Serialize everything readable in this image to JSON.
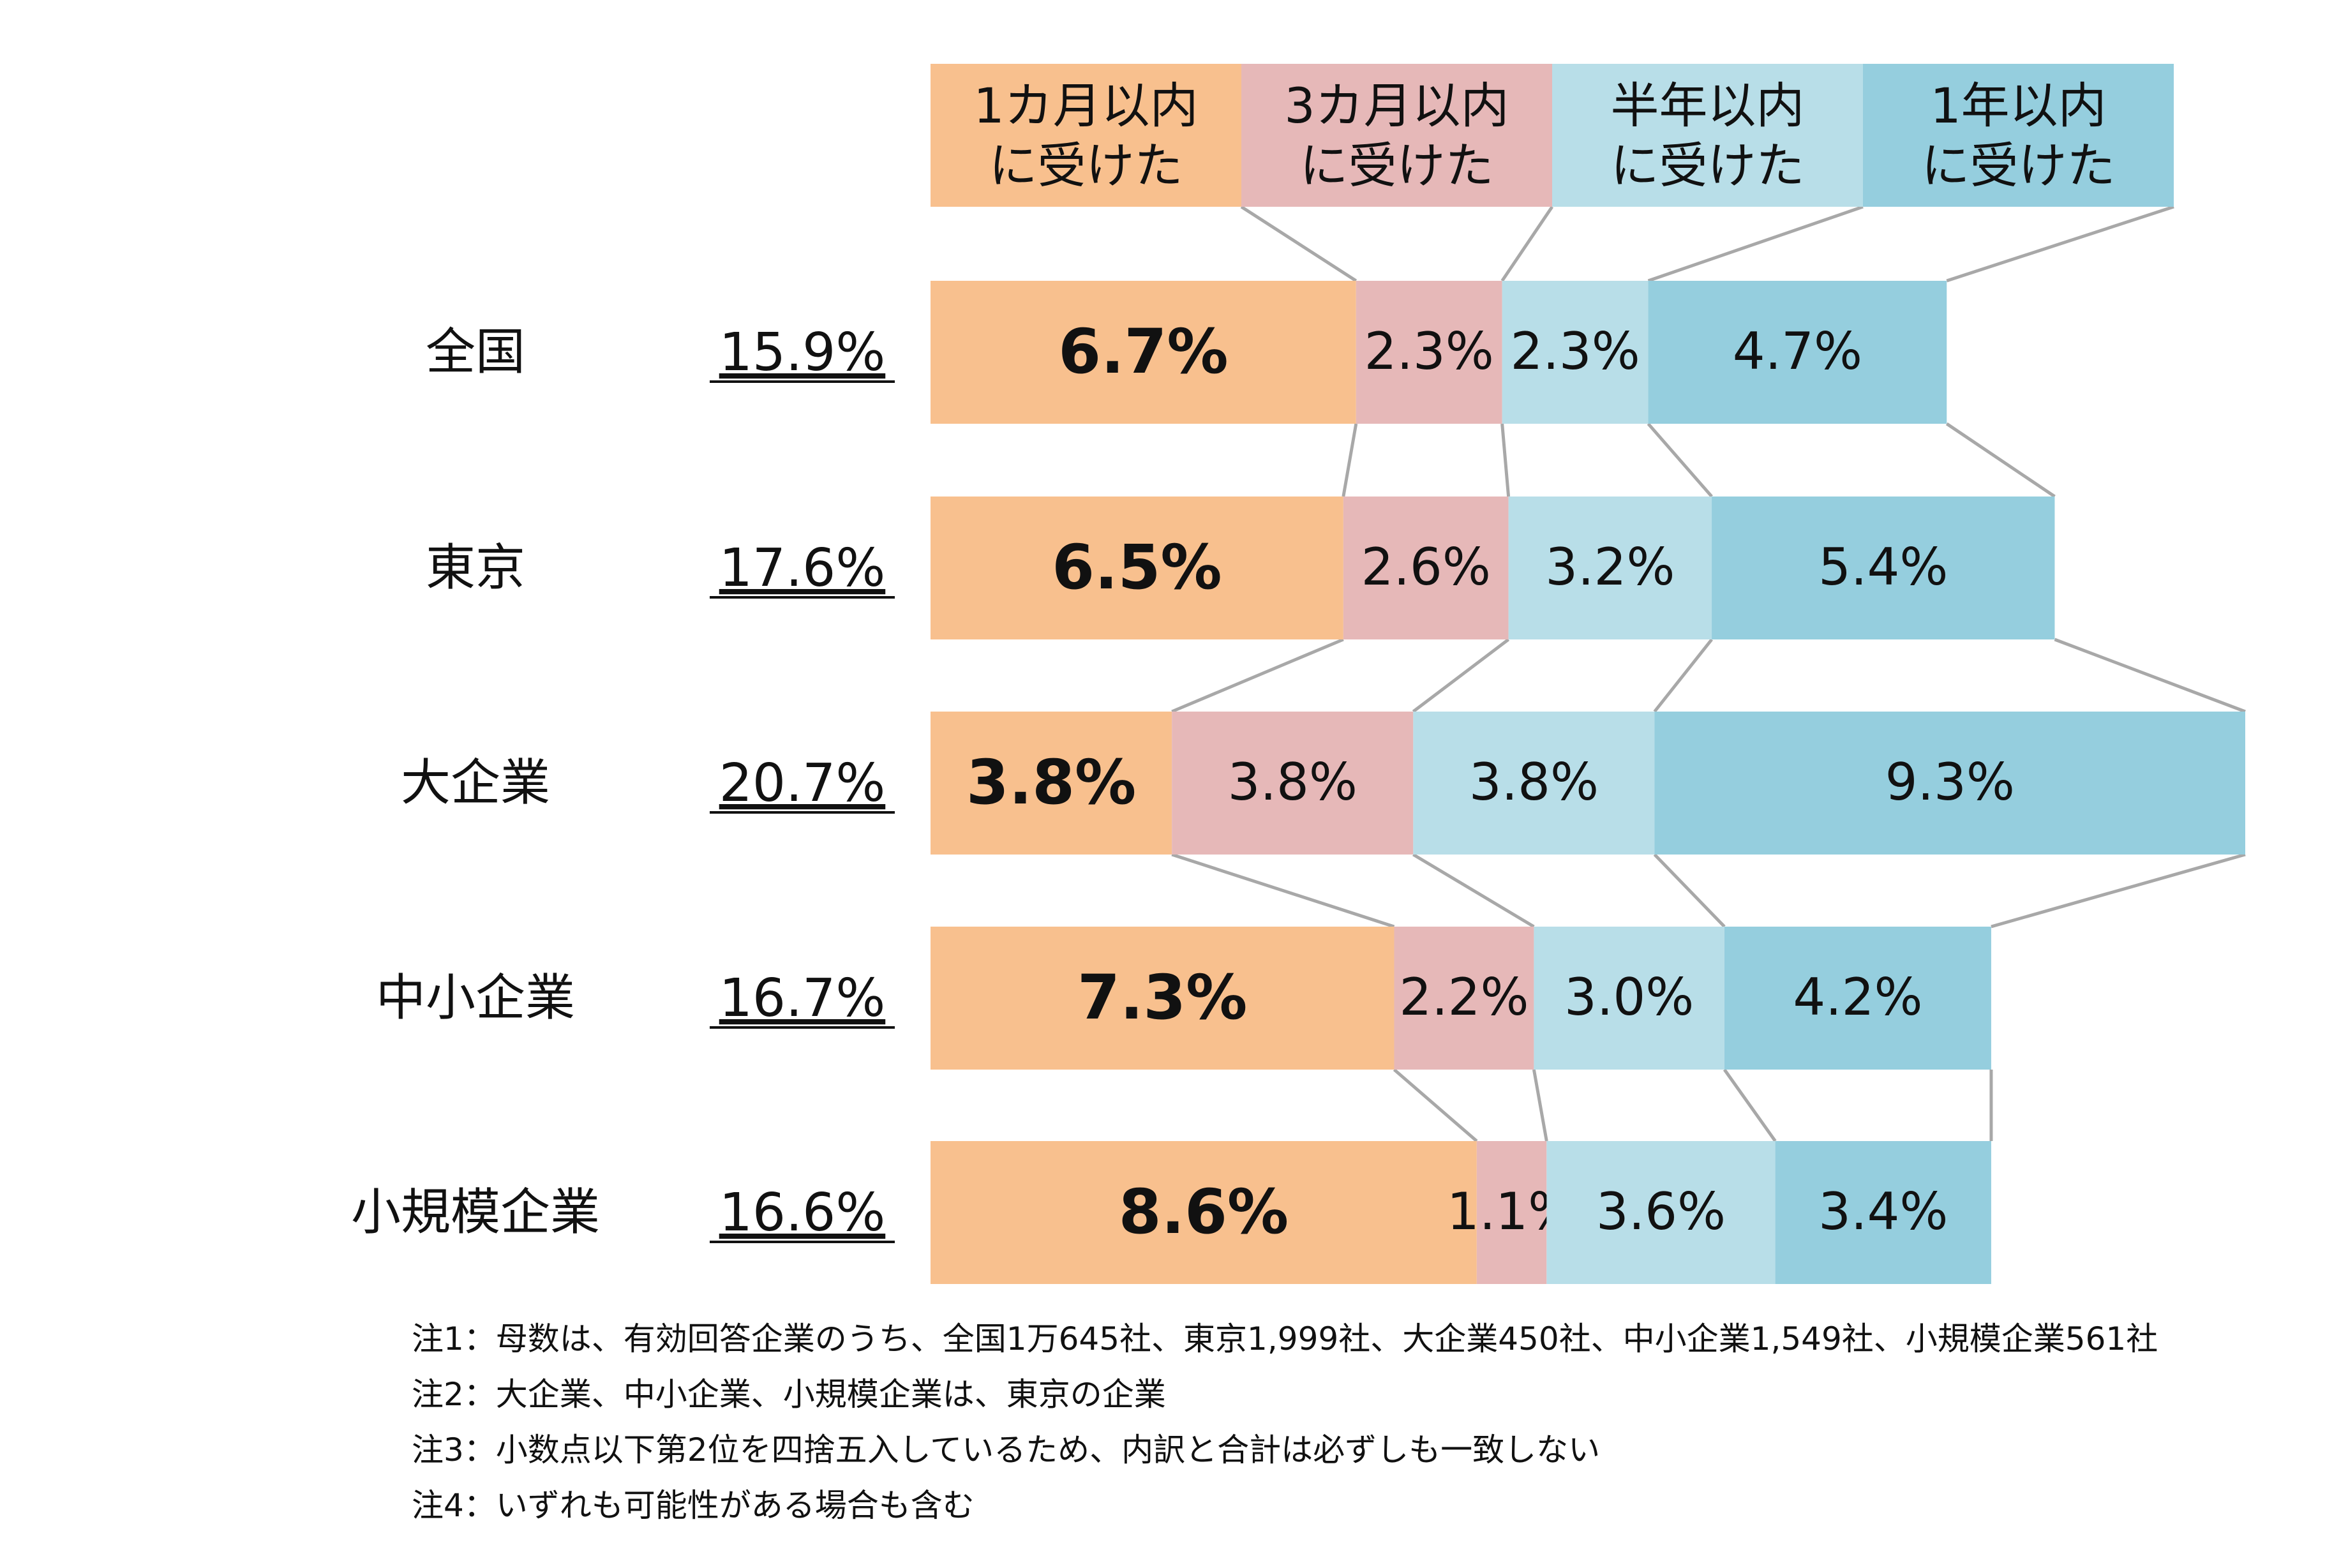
{
  "chart_data": {
    "type": "bar",
    "stacked": true,
    "orientation": "horizontal",
    "legend": [
      "1カ月以内\nに受けた",
      "3カ月以内\nに受けた",
      "半年以内\nに受けた",
      "1年以内\nに受けた"
    ],
    "legend_placement": "top",
    "categories": [
      "全国",
      "東京",
      "大企業",
      "中小企業",
      "小規模企業"
    ],
    "totals": [
      "15.9%",
      "17.6%",
      "20.7%",
      "16.7%",
      "16.6%"
    ],
    "series": [
      {
        "values": [
          6.7,
          6.5,
          3.8,
          7.3,
          8.6
        ],
        "labels": [
          "6.7%",
          "6.5%",
          "3.8%",
          "7.3%",
          "8.6%"
        ],
        "color": "#F8C08E"
      },
      {
        "values": [
          2.3,
          2.6,
          3.8,
          2.2,
          1.1
        ],
        "labels": [
          "2.3%",
          "2.6%",
          "3.8%",
          "2.2%",
          "1.1%"
        ],
        "color": "#E6B8B8"
      },
      {
        "values": [
          2.3,
          3.2,
          3.8,
          3.0,
          3.6
        ],
        "labels": [
          "2.3%",
          "3.2%",
          "3.8%",
          "3.0%",
          "3.6%"
        ],
        "color": "#B8DEE8"
      },
      {
        "values": [
          4.7,
          5.4,
          9.3,
          4.2,
          3.4
        ],
        "labels": [
          "4.7%",
          "5.4%",
          "9.3%",
          "4.2%",
          "3.4%"
        ],
        "color": "#95CEDE"
      }
    ],
    "connector_color": "#A8A8A8",
    "grid": false
  },
  "notes": [
    "注1：母数は、有効回答企業のうち、全国1万645社、東京1,999社、大企業450社、中小企業1,549社、小規模企業561社",
    "注2：大企業、中小企業、小規模企業は、東京の企業",
    "注3：小数点以下第2位を四捨五入しているため、内訳と合計は必ずしも一致しない",
    "注4：いずれも可能性がある場合も含む"
  ]
}
